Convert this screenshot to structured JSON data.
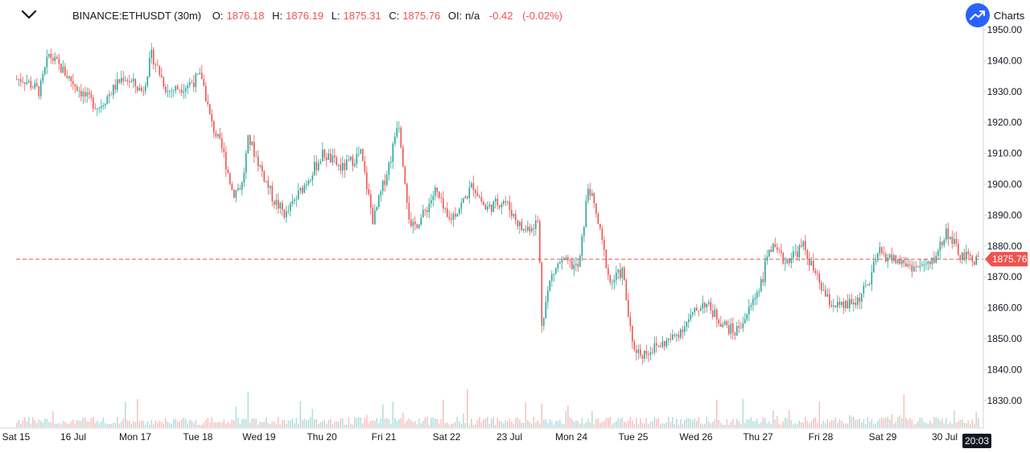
{
  "header": {
    "symbol": "BINANCE:ETHUSDT (30m)",
    "o_label": "O:",
    "o_value": "1876.18",
    "h_label": "H:",
    "h_value": "1876.19",
    "l_label": "L:",
    "l_value": "1875.31",
    "c_label": "C:",
    "c_value": "1875.76",
    "oi_label": "OI:",
    "oi_value": "n/a",
    "change": "-0.42",
    "change_pct": "(-0.02%)"
  },
  "brand": {
    "label": "Charts",
    "icon": "trend-up-icon"
  },
  "colors": {
    "up": "#26a69a",
    "down": "#ef5350",
    "price_line": "#ef5350",
    "axis_text": "#131722"
  },
  "chart_data": {
    "type": "candlestick",
    "symbol": "BINANCE:ETHUSDT",
    "interval": "30m",
    "y_ticks": [
      "1950.00",
      "1940.00",
      "1930.00",
      "1920.00",
      "1910.00",
      "1900.00",
      "1890.00",
      "1880.00",
      "1870.00",
      "1860.00",
      "1850.00",
      "1840.00",
      "1830.00"
    ],
    "ylim": [
      1822,
      1951
    ],
    "x_ticks": [
      "Sat 15",
      "16 Jul",
      "Mon 17",
      "Tue 18",
      "Wed 19",
      "Thu 20",
      "Fri 21",
      "Sat 22",
      "23 Jul",
      "Mon 24",
      "Tue 25",
      "Wed 26",
      "Thu 27",
      "Fri 28",
      "Sat 29",
      "30 Jul"
    ],
    "last_price": "1875.76",
    "last_price_value": 1875.76,
    "time_label": "20:03",
    "close_path": [
      {
        "d": 0.0,
        "p": 1934
      },
      {
        "d": 0.25,
        "p": 1930
      },
      {
        "d": 0.4,
        "p": 1942
      },
      {
        "d": 0.7,
        "p": 1935
      },
      {
        "d": 1.0,
        "p": 1928
      },
      {
        "d": 1.2,
        "p": 1925
      },
      {
        "d": 1.6,
        "p": 1935
      },
      {
        "d": 1.9,
        "p": 1930
      },
      {
        "d": 2.05,
        "p": 1942
      },
      {
        "d": 2.3,
        "p": 1930
      },
      {
        "d": 2.6,
        "p": 1932
      },
      {
        "d": 2.85,
        "p": 1935
      },
      {
        "d": 3.0,
        "p": 1920
      },
      {
        "d": 3.2,
        "p": 1910
      },
      {
        "d": 3.35,
        "p": 1897
      },
      {
        "d": 3.5,
        "p": 1900
      },
      {
        "d": 3.6,
        "p": 1915
      },
      {
        "d": 3.8,
        "p": 1905
      },
      {
        "d": 4.0,
        "p": 1895
      },
      {
        "d": 4.2,
        "p": 1890
      },
      {
        "d": 4.5,
        "p": 1900
      },
      {
        "d": 4.8,
        "p": 1910
      },
      {
        "d": 5.1,
        "p": 1905
      },
      {
        "d": 5.4,
        "p": 1910
      },
      {
        "d": 5.6,
        "p": 1888
      },
      {
        "d": 5.9,
        "p": 1910
      },
      {
        "d": 6.0,
        "p": 1922
      },
      {
        "d": 6.2,
        "p": 1885
      },
      {
        "d": 6.4,
        "p": 1890
      },
      {
        "d": 6.6,
        "p": 1898
      },
      {
        "d": 6.8,
        "p": 1888
      },
      {
        "d": 7.0,
        "p": 1893
      },
      {
        "d": 7.2,
        "p": 1900
      },
      {
        "d": 7.4,
        "p": 1892
      },
      {
        "d": 7.7,
        "p": 1895
      },
      {
        "d": 8.0,
        "p": 1885
      },
      {
        "d": 8.25,
        "p": 1888
      },
      {
        "d": 8.3,
        "p": 1855
      },
      {
        "d": 8.45,
        "p": 1870
      },
      {
        "d": 8.6,
        "p": 1875
      },
      {
        "d": 8.9,
        "p": 1873
      },
      {
        "d": 9.05,
        "p": 1900
      },
      {
        "d": 9.2,
        "p": 1888
      },
      {
        "d": 9.4,
        "p": 1868
      },
      {
        "d": 9.6,
        "p": 1872
      },
      {
        "d": 9.75,
        "p": 1848
      },
      {
        "d": 9.9,
        "p": 1845
      },
      {
        "d": 10.1,
        "p": 1847
      },
      {
        "d": 10.4,
        "p": 1850
      },
      {
        "d": 10.7,
        "p": 1857
      },
      {
        "d": 10.9,
        "p": 1862
      },
      {
        "d": 11.2,
        "p": 1855
      },
      {
        "d": 11.4,
        "p": 1852
      },
      {
        "d": 11.6,
        "p": 1858
      },
      {
        "d": 11.85,
        "p": 1870
      },
      {
        "d": 11.95,
        "p": 1880
      },
      {
        "d": 12.2,
        "p": 1875
      },
      {
        "d": 12.5,
        "p": 1880
      },
      {
        "d": 12.7,
        "p": 1870
      },
      {
        "d": 12.9,
        "p": 1862
      },
      {
        "d": 13.1,
        "p": 1860
      },
      {
        "d": 13.35,
        "p": 1862
      },
      {
        "d": 13.55,
        "p": 1868
      },
      {
        "d": 13.7,
        "p": 1878
      },
      {
        "d": 13.9,
        "p": 1876
      },
      {
        "d": 14.3,
        "p": 1873
      },
      {
        "d": 14.55,
        "p": 1874
      },
      {
        "d": 14.8,
        "p": 1885
      },
      {
        "d": 15.0,
        "p": 1877
      },
      {
        "d": 15.2,
        "p": 1875.76
      }
    ]
  }
}
